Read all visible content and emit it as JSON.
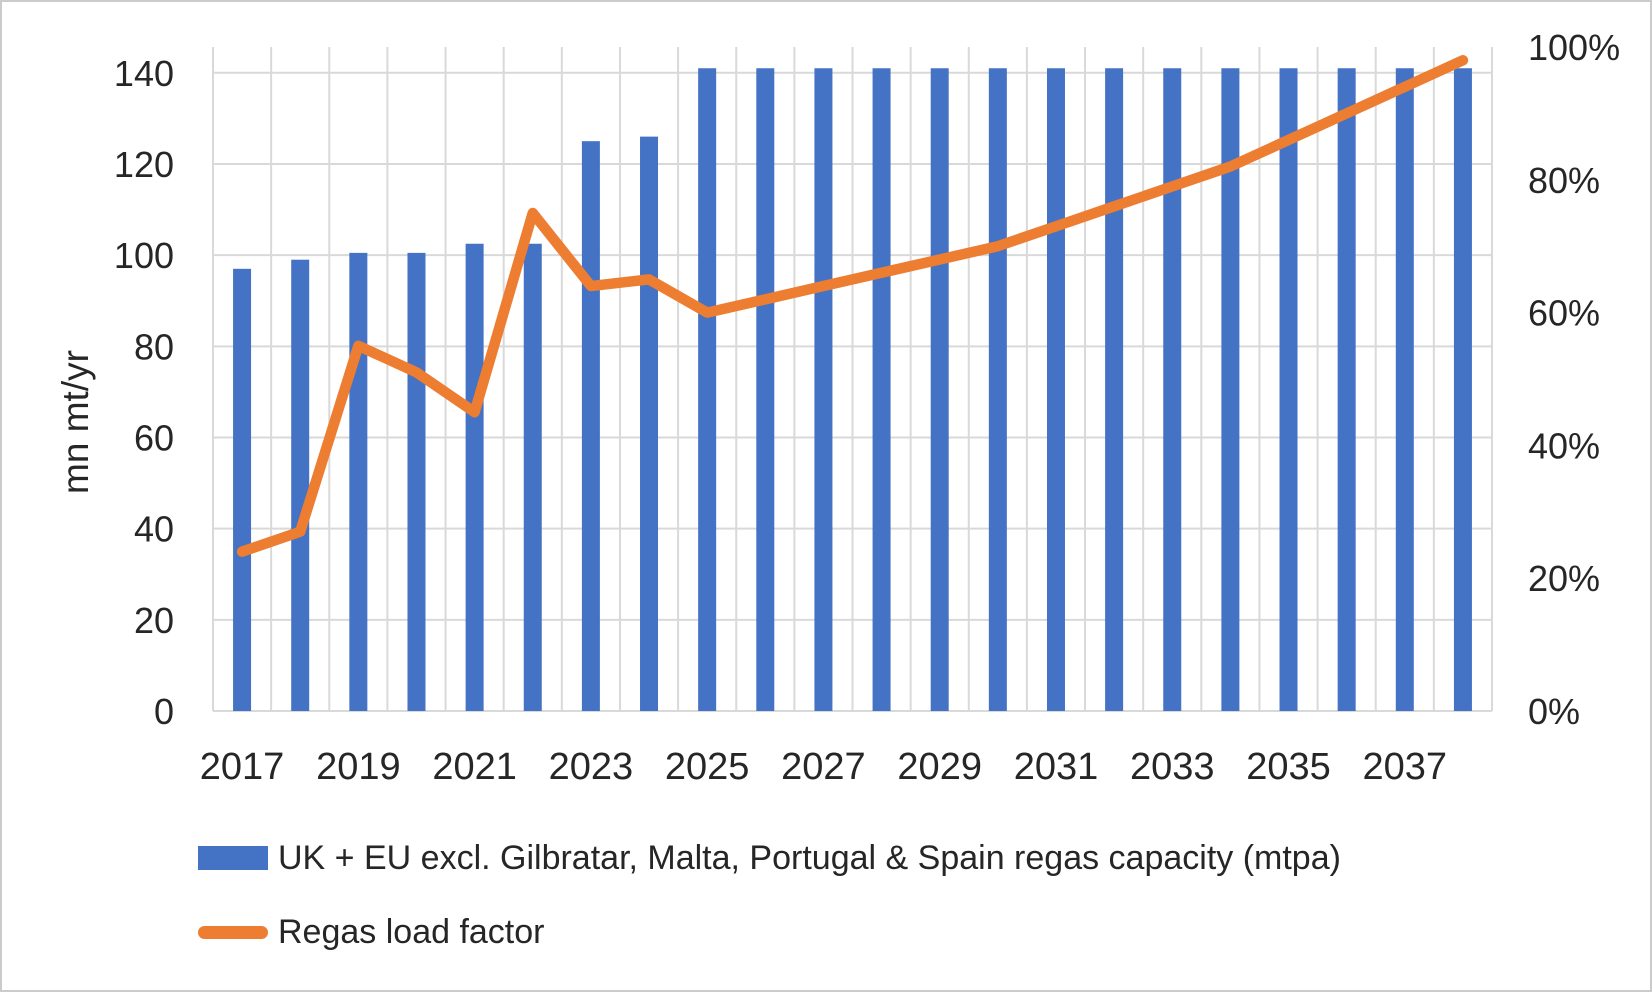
{
  "page": {
    "background_color": "#ffffff",
    "border_color": "#cbcbcb",
    "text_color": "#262626"
  },
  "chart_data": {
    "type": "combo-bar-line",
    "categories": [
      2017,
      2018,
      2019,
      2020,
      2021,
      2022,
      2023,
      2024,
      2025,
      2026,
      2027,
      2028,
      2029,
      2030,
      2031,
      2032,
      2033,
      2034,
      2035,
      2036,
      2037,
      2038
    ],
    "x_tick_labels": [
      "2017",
      "2019",
      "2021",
      "2023",
      "2025",
      "2027",
      "2029",
      "2031",
      "2033",
      "2035",
      "2037"
    ],
    "series": [
      {
        "name": "UK + EU excl. Gilbratar, Malta, Portugal & Spain regas capacity (mtpa)",
        "type": "bar",
        "axis": "left",
        "color": "#4472C4",
        "values": [
          97,
          99,
          100.5,
          100.5,
          102.5,
          102.5,
          125,
          126,
          141,
          141,
          141,
          141,
          141,
          141,
          141,
          141,
          141,
          141,
          141,
          141,
          141,
          141
        ]
      },
      {
        "name": "Regas load factor",
        "type": "line",
        "axis": "right",
        "color": "#ED7D31",
        "unit": "%",
        "values": [
          24,
          27,
          55,
          51,
          45,
          75,
          64,
          65,
          60,
          62,
          64,
          66,
          68,
          70,
          73,
          76,
          79,
          82,
          86,
          90,
          94,
          98
        ]
      }
    ],
    "left_axis": {
      "label": "mn mt/yr",
      "min": 0,
      "max": 140,
      "tick_step": 20,
      "tick_labels": [
        "0",
        "20",
        "40",
        "60",
        "80",
        "100",
        "120",
        "140"
      ]
    },
    "right_axis": {
      "min": 0,
      "max": 100,
      "tick_step": 20,
      "tick_labels": [
        "0%",
        "20%",
        "40%",
        "60%",
        "80%",
        "100%"
      ]
    },
    "grid": {
      "horizontal": true,
      "vertical": true,
      "color": "#D9D9D9"
    },
    "legend_position": "bottom-left",
    "title": ""
  }
}
